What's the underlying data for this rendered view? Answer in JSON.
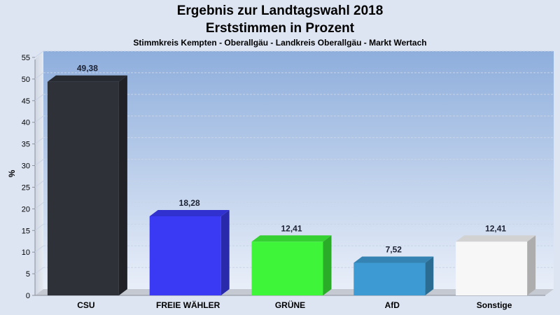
{
  "chart_data": {
    "type": "bar",
    "title_line1": "Ergebnis zur Landtagswahl 2018",
    "title_line2": "Erststimmen in Prozent",
    "subtitle": "Stimmkreis Kempten - Oberallgäu - Landkreis Oberallgäu - Markt Wertach",
    "ylabel": "%",
    "xlabel": "",
    "ylim": [
      0,
      55
    ],
    "yticks": [
      0,
      5,
      10,
      15,
      20,
      25,
      30,
      35,
      40,
      45,
      50,
      55
    ],
    "grid": true,
    "categories": [
      "CSU",
      "FREIE WÄHLER",
      "GRÜNE",
      "AfD",
      "Sonstige"
    ],
    "values": [
      49.38,
      18.28,
      12.41,
      7.52,
      12.41
    ],
    "value_labels": [
      "49,38",
      "18,28",
      "12,41",
      "7,52",
      "12,41"
    ],
    "colors": [
      "#2e3138",
      "#3a3af5",
      "#3ef53a",
      "#3d9ad2",
      "#f7f7f7"
    ]
  }
}
